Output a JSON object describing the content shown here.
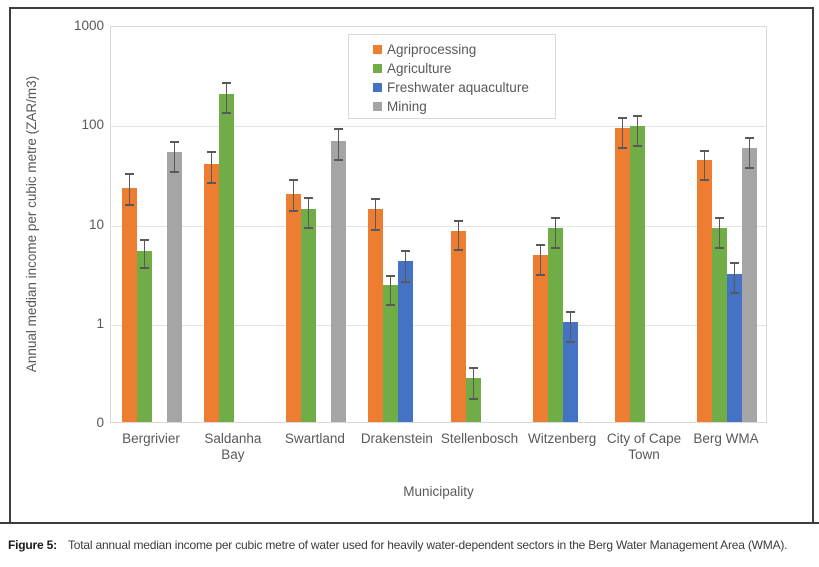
{
  "figure": {
    "caption_label": "Figure 5:",
    "caption_text": "Total annual median income per cubic metre of water used for heavily water-dependent sectors in the Berg Water Management Area (WMA)."
  },
  "chart_data": {
    "type": "bar",
    "title": "",
    "xlabel": "Municipality",
    "ylabel": "Annual median income per cubic metre (ZAR/m3)",
    "y_scale": "log",
    "ylim": [
      0.1,
      1000
    ],
    "y_tick_labels": [
      "1000",
      "100",
      "10",
      "1",
      "0"
    ],
    "y_tick_values": [
      1000,
      100,
      10,
      1,
      0.1
    ],
    "gridlines": [
      100,
      10,
      1
    ],
    "grid": true,
    "legend_position": "inside-top-center",
    "error_bars": true,
    "error_bar_color": "#595959",
    "categories": [
      "Bergrivier",
      "Saldanha Bay",
      "Swartland",
      "Drakenstein",
      "Stellenbosch",
      "Witzenberg",
      "City of Cape Town",
      "Berg WMA"
    ],
    "series": [
      {
        "name": "Agriprocessing",
        "color": "#ED7D31",
        "values": [
          23,
          40,
          20,
          14,
          8.5,
          4.8,
          92,
          44
        ],
        "err_low": [
          16,
          27,
          14,
          9,
          5.7,
          3.2,
          61,
          29
        ],
        "err_high": [
          33,
          55,
          29,
          18.5,
          11,
          6.4,
          122,
          57
        ]
      },
      {
        "name": "Agriculture",
        "color": "#70AD47",
        "values": [
          5.3,
          200,
          14,
          2.4,
          0.28,
          9,
          96,
          9
        ],
        "err_low": [
          3.7,
          135,
          9.5,
          1.6,
          0.18,
          6,
          64,
          6
        ],
        "err_high": [
          7.2,
          270,
          19,
          3.1,
          0.37,
          12,
          128,
          12
        ]
      },
      {
        "name": "Freshwater aquaculture",
        "color": "#4472C4",
        "values": [
          null,
          null,
          null,
          4.2,
          null,
          1.02,
          null,
          3.1
        ],
        "err_low": [
          null,
          null,
          null,
          2.7,
          null,
          0.67,
          null,
          2.1
        ],
        "err_high": [
          null,
          null,
          null,
          5.5,
          null,
          1.35,
          null,
          4.2
        ]
      },
      {
        "name": "Mining",
        "color": "#A5A5A5",
        "values": [
          52,
          null,
          68,
          null,
          null,
          null,
          null,
          58
        ],
        "err_low": [
          35,
          null,
          46,
          null,
          null,
          null,
          null,
          38
        ],
        "err_high": [
          70,
          null,
          93,
          null,
          null,
          null,
          null,
          76
        ]
      }
    ]
  }
}
